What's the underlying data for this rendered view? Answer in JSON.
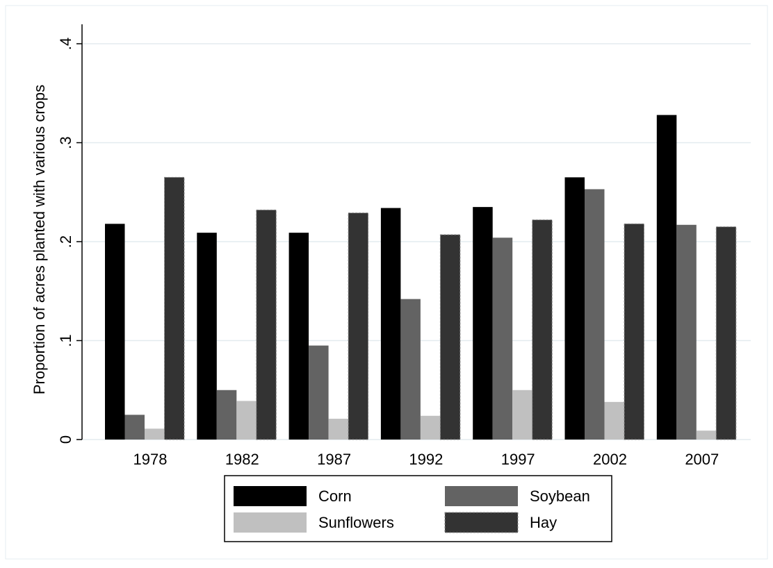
{
  "chart_data": {
    "type": "bar",
    "y_label": "Proportion of acres planted with various crops",
    "categories": [
      "1978",
      "1982",
      "1987",
      "1992",
      "1997",
      "2002",
      "2007"
    ],
    "series": [
      {
        "name": "Corn",
        "color": "#000000",
        "values": [
          0.218,
          0.209,
          0.209,
          0.234,
          0.235,
          0.265,
          0.328
        ]
      },
      {
        "name": "Soybean",
        "color": "#636363",
        "values": [
          0.025,
          0.05,
          0.095,
          0.142,
          0.204,
          0.253,
          0.217
        ]
      },
      {
        "name": "Sunflowers",
        "color": "#c0c0c0",
        "values": [
          0.011,
          0.039,
          0.021,
          0.024,
          0.05,
          0.038,
          0.009
        ]
      },
      {
        "name": "Hay",
        "color": "#333333",
        "values": [
          0.265,
          0.232,
          0.229,
          0.207,
          0.222,
          0.218,
          0.215
        ]
      }
    ],
    "ylim": [
      0,
      0.4
    ],
    "yticks": [
      0,
      {
        "value": 0.1,
        "label": ".1"
      },
      {
        "value": 0.2,
        "label": ".2"
      },
      {
        "value": 0.3,
        "label": ".3"
      },
      {
        "value": 0.4,
        "label": ".4"
      }
    ],
    "grid": true
  }
}
